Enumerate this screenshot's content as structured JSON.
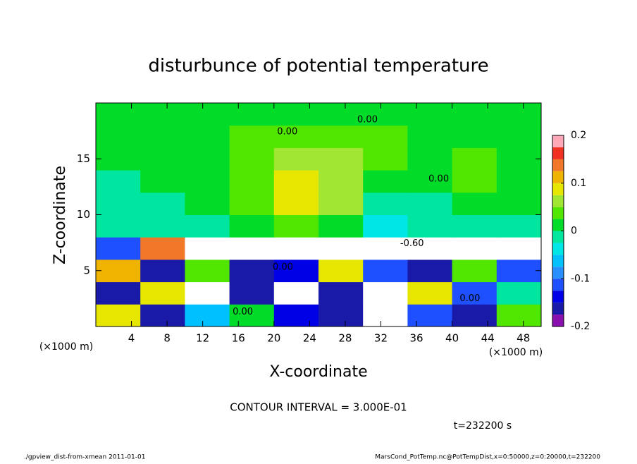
{
  "chart_data": {
    "type": "heatmap",
    "title": "disturbunce of potential temperature",
    "xlabel": "X-coordinate",
    "ylabel": "Z-coordinate",
    "x_unit": "(×1000 m)",
    "y_unit": "(×1000 m)",
    "contour_interval": "CONTOUR INTERVAL = 3.000E-01",
    "time": "t=232200 s",
    "footer_left": "./gpview_dist-from-xmean  2011-01-01",
    "footer_right": "MarsCond_PotTemp.nc@PotTempDist,x=0:50000,z=0:20000,t=232200",
    "xlim": [
      0,
      50
    ],
    "ylim": [
      0,
      20
    ],
    "xticks": [
      4,
      8,
      12,
      16,
      20,
      24,
      28,
      32,
      36,
      40,
      44,
      48
    ],
    "yticks": [
      5,
      10,
      15
    ],
    "x": [
      2.5,
      7.5,
      12.5,
      17.5,
      22.5,
      27.5,
      32.5,
      37.5,
      42.5,
      47.5
    ],
    "y": [
      1,
      3,
      5,
      7,
      9,
      11,
      13,
      15,
      17,
      19
    ],
    "z": [
      [
        0.1,
        -0.15,
        -0.05,
        0.02,
        -0.14,
        -0.17,
        0.3,
        -0.1,
        -0.15,
        0.05
      ],
      [
        -0.16,
        0.1,
        0.3,
        -0.17,
        0.3,
        -0.15,
        0.3,
        0.08,
        -0.12,
        0
      ],
      [
        0.12,
        -0.15,
        0.05,
        -0.16,
        -0.14,
        0.1,
        -0.12,
        -0.15,
        0.05,
        -0.1
      ],
      [
        -0.12,
        0.15,
        -0.3,
        0.3,
        0.3,
        0.3,
        0.3,
        0.3,
        0.3,
        -0.3
      ],
      [
        -0.01,
        0,
        -0.01,
        0.01,
        0.03,
        0.02,
        -0.03,
        -0.01,
        0,
        0
      ],
      [
        0,
        0,
        0.01,
        0.04,
        0.08,
        0.07,
        0,
        0,
        0.01,
        0.01
      ],
      [
        0,
        0.01,
        0.02,
        0.05,
        0.09,
        0.07,
        0.02,
        0.01,
        0.03,
        0.02
      ],
      [
        0.01,
        0.01,
        0.02,
        0.04,
        0.07,
        0.06,
        0.03,
        0.02,
        0.03,
        0.02
      ],
      [
        0.02,
        0.02,
        0.02,
        0.03,
        0.04,
        0.05,
        0.03,
        0.02,
        0.02,
        0.02
      ],
      [
        0.01,
        0.01,
        0.01,
        0.01,
        0.01,
        0.01,
        0.01,
        0.01,
        0.01,
        0.01
      ]
    ],
    "annotations": [
      {
        "text": "0.00",
        "x": 30.5,
        "y": 18.5
      },
      {
        "text": "0.00",
        "x": 21.5,
        "y": 17.4
      },
      {
        "text": "0.00",
        "x": 38.5,
        "y": 13.2
      },
      {
        "text": "-0.60",
        "x": 35.5,
        "y": 7.4
      },
      {
        "text": "0.00",
        "x": 21,
        "y": 5.3
      },
      {
        "text": "0.00",
        "x": 16.5,
        "y": 1.3
      },
      {
        "text": "0.00",
        "x": 42,
        "y": 2.5
      }
    ],
    "colorbar": {
      "levels": [
        -0.2,
        -0.175,
        -0.15,
        -0.125,
        -0.1,
        -0.075,
        -0.05,
        -0.025,
        0,
        0.025,
        0.05,
        0.075,
        0.1,
        0.125,
        0.15,
        0.175,
        0.2
      ],
      "colors": [
        "#8a10b0",
        "#1a1aa8",
        "#0000e6",
        "#1e50ff",
        "#2890ff",
        "#00c0ff",
        "#00e6e6",
        "#00e6a0",
        "#00dc28",
        "#50e600",
        "#a0e632",
        "#e6e600",
        "#f0b400",
        "#f07828",
        "#f03020",
        "#ffa8b8"
      ],
      "ticks": [
        -0.2,
        -0.1,
        0,
        0.1,
        0.2
      ]
    }
  }
}
